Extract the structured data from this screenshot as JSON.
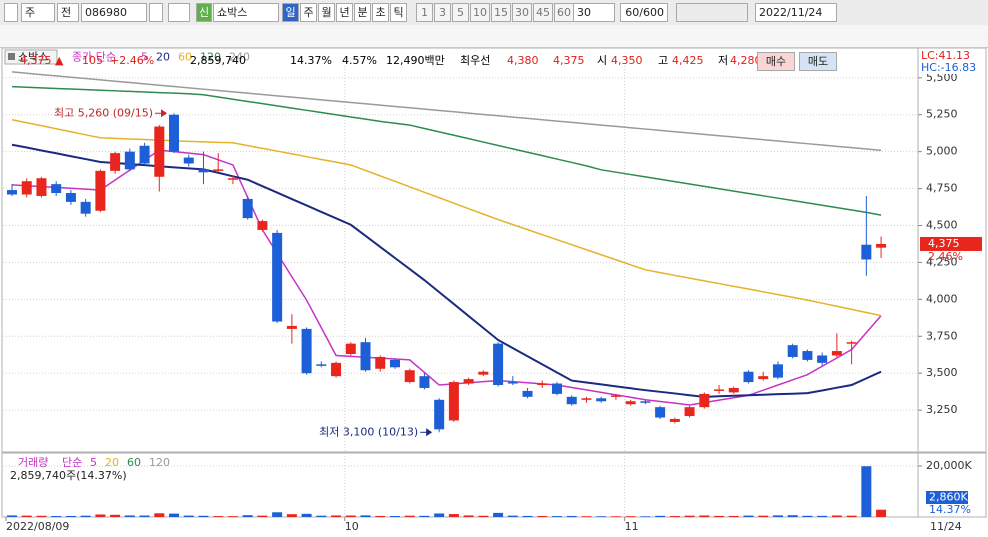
{
  "toolbar": {
    "market": "주",
    "scope": "전",
    "code": "086980",
    "badge": "신",
    "name": "쇼박스",
    "periods": [
      "일",
      "주",
      "월",
      "년",
      "분",
      "초",
      "틱"
    ],
    "intervals": [
      1,
      3,
      5,
      10,
      15,
      30,
      45,
      60
    ],
    "interval_select": 30,
    "count": "60/600",
    "date": "2022/11/24"
  },
  "quote": {
    "price": "4,375 ▲",
    "change": "105",
    "rate": "+2.46%",
    "volume": "2,859,740",
    "turnover": "14.37%",
    "ratio": "4.57%",
    "amount": "12,490백만",
    "best_label": "최우선",
    "ask": "4,380",
    "bid": "4,375",
    "open_label": "시",
    "open": "4,350",
    "high_label": "고",
    "high": "4,425",
    "low_label": "저",
    "low": "4,280",
    "buy": "매수",
    "sell": "매도"
  },
  "chart_data": {
    "type": "candlestick",
    "title": "쇼박스",
    "legend_label": "종가 단순",
    "categories": [
      "2022/08/09",
      null,
      null,
      null,
      null,
      null,
      null,
      null,
      null,
      null,
      null,
      null,
      null,
      null,
      null,
      null,
      null,
      null,
      null,
      null,
      null,
      null,
      null,
      "10",
      null,
      null,
      null,
      null,
      null,
      null,
      null,
      null,
      null,
      null,
      null,
      null,
      null,
      null,
      null,
      null,
      null,
      null,
      "11",
      null,
      null,
      null,
      null,
      null,
      null,
      null,
      null,
      null,
      null,
      null,
      null,
      null,
      null,
      null,
      null,
      null
    ],
    "end_date": "11/24",
    "open": [
      4740,
      4710,
      4700,
      4780,
      4720,
      4660,
      4600,
      4870,
      5000,
      5040,
      4830,
      5250,
      4960,
      4880,
      4870,
      4810,
      4680,
      4470,
      4450,
      3800,
      3800,
      3560,
      3480,
      3630,
      3710,
      3530,
      3590,
      3440,
      3480,
      3320,
      3180,
      3430,
      3490,
      3700,
      3440,
      3380,
      3420,
      3430,
      3340,
      3320,
      3330,
      3340,
      3290,
      3310,
      3270,
      3170,
      3210,
      3270,
      3380,
      3370,
      3510,
      3460,
      3560,
      3690,
      3650,
      3620,
      3620,
      3700,
      4370,
      4350
    ],
    "high": [
      4780,
      4820,
      4830,
      4800,
      4740,
      4680,
      4880,
      5000,
      5020,
      5060,
      5180,
      5260,
      4980,
      5000,
      4990,
      4840,
      4700,
      4540,
      4470,
      3900,
      3810,
      3580,
      3580,
      3710,
      3740,
      3620,
      3600,
      3530,
      3500,
      3330,
      3450,
      3470,
      3520,
      3710,
      3480,
      3400,
      3450,
      3440,
      3350,
      3340,
      3340,
      3360,
      3320,
      3320,
      3280,
      3200,
      3280,
      3370,
      3420,
      3410,
      3520,
      3510,
      3580,
      3700,
      3660,
      3640,
      3770,
      3720,
      4700,
      4425
    ],
    "low": [
      4700,
      4690,
      4690,
      4700,
      4640,
      4560,
      4590,
      4850,
      4870,
      4910,
      4730,
      4990,
      4900,
      4780,
      4860,
      4780,
      4540,
      4460,
      3840,
      3700,
      3490,
      3540,
      3470,
      3620,
      3510,
      3510,
      3530,
      3430,
      3390,
      3100,
      3170,
      3420,
      3480,
      3410,
      3420,
      3330,
      3400,
      3350,
      3280,
      3300,
      3300,
      3320,
      3280,
      3290,
      3190,
      3160,
      3200,
      3260,
      3360,
      3360,
      3430,
      3450,
      3460,
      3600,
      3580,
      3550,
      3610,
      3560,
      4160,
      4280
    ],
    "close": [
      4710,
      4800,
      4820,
      4720,
      4660,
      4580,
      4870,
      4990,
      4880,
      4920,
      5170,
      5000,
      4920,
      4860,
      4880,
      4820,
      4550,
      4530,
      3850,
      3820,
      3500,
      3550,
      3570,
      3700,
      3520,
      3610,
      3540,
      3520,
      3400,
      3120,
      3440,
      3460,
      3510,
      3420,
      3430,
      3340,
      3430,
      3360,
      3290,
      3330,
      3310,
      3350,
      3310,
      3300,
      3200,
      3190,
      3270,
      3360,
      3390,
      3400,
      3440,
      3480,
      3470,
      3610,
      3590,
      3570,
      3650,
      3710,
      4270,
      4375
    ],
    "up_color": "#e8261e",
    "down_color": "#1d5fd6",
    "ylim": [
      2980,
      5580
    ],
    "yticks": [
      {
        "value": 5500,
        "label": "5,500"
      },
      {
        "value": 5250,
        "label": "5,250"
      },
      {
        "value": 5000,
        "label": "5,000"
      },
      {
        "value": 4750,
        "label": "4,750"
      },
      {
        "value": 4500,
        "label": "4,500"
      },
      {
        "value": 4250,
        "label": "4,250"
      },
      {
        "value": 4000,
        "label": "4,000"
      },
      {
        "value": 3750,
        "label": "3,750"
      },
      {
        "value": 3500,
        "label": "3,500"
      },
      {
        "value": 3250,
        "label": "3,250"
      }
    ],
    "grid": true,
    "series": [
      {
        "name": 5,
        "color": "#c633c6",
        "values": [
          4775,
          4769,
          4763,
          4758,
          4752,
          4746,
          4740,
          4808,
          4875,
          4943,
          5010,
          5000,
          4990,
          4980,
          4945,
          4910,
          4690,
          4470,
          4312,
          4153,
          3995,
          3808,
          3620,
          3614,
          3608,
          3602,
          3596,
          3590,
          3505,
          3420,
          3428,
          3435,
          3443,
          3450,
          3443,
          3435,
          3428,
          3420,
          3403,
          3387,
          3370,
          3353,
          3337,
          3320,
          3308,
          3297,
          3285,
          3301,
          3318,
          3334,
          3350,
          3385,
          3420,
          3455,
          3490,
          3547,
          3603,
          3660,
          3775,
          3890
        ]
      },
      {
        "name": 20,
        "color": "#1b2a80",
        "values": [
          5047,
          5028,
          5008,
          4989,
          4969,
          4950,
          4930,
          4923,
          4916,
          4909,
          4901,
          4894,
          4887,
          4880,
          4857,
          4833,
          4810,
          4766,
          4723,
          4679,
          4636,
          4592,
          4549,
          4505,
          4430,
          4355,
          4280,
          4205,
          4130,
          4049,
          3968,
          3887,
          3806,
          3725,
          3670,
          3615,
          3560,
          3505,
          3450,
          3437,
          3424,
          3411,
          3398,
          3385,
          3374,
          3363,
          3351,
          3340,
          3344,
          3347,
          3351,
          3354,
          3358,
          3361,
          3365,
          3383,
          3402,
          3420,
          3465,
          3510
        ]
      },
      {
        "name": 60,
        "color": "#e5b228",
        "values": [
          5216,
          5196,
          5176,
          5155,
          5135,
          5114,
          5094,
          5090,
          5086,
          5082,
          5078,
          5074,
          5070,
          5066,
          5063,
          5060,
          5041,
          5022,
          5004,
          4985,
          4966,
          4947,
          4929,
          4910,
          4873,
          4836,
          4799,
          4762,
          4725,
          4688,
          4651,
          4614,
          4577,
          4540,
          4506,
          4472,
          4438,
          4404,
          4370,
          4336,
          4302,
          4268,
          4234,
          4200,
          4181,
          4162,
          4144,
          4125,
          4107,
          4088,
          4070,
          4051,
          4032,
          4014,
          3995,
          3974,
          3953,
          3932,
          3911,
          3890
        ]
      },
      {
        "name": 120,
        "color": "#2e8b4e",
        "values": [
          5440,
          5436,
          5432,
          5428,
          5424,
          5420,
          5416,
          5412,
          5408,
          5404,
          5400,
          5396,
          5392,
          5385,
          5370,
          5355,
          5340,
          5325,
          5310,
          5295,
          5280,
          5265,
          5250,
          5235,
          5220,
          5205,
          5192,
          5180,
          5157,
          5134,
          5111,
          5088,
          5065,
          5042,
          5019,
          4996,
          4973,
          4950,
          4927,
          4904,
          4877,
          4861,
          4845,
          4829,
          4813,
          4797,
          4781,
          4765,
          4749,
          4733,
          4717,
          4701,
          4685,
          4669,
          4653,
          4637,
          4621,
          4605,
          4589,
          4570
        ]
      },
      {
        "name": 240,
        "color": "#9a9a9a",
        "values": [
          5540,
          5531,
          5522,
          5513,
          5504,
          5495,
          5486,
          5477,
          5468,
          5459,
          5450,
          5441,
          5432,
          5423,
          5414,
          5405,
          5396,
          5387,
          5378,
          5369,
          5360,
          5351,
          5342,
          5333,
          5324,
          5315,
          5306,
          5297,
          5288,
          5279,
          5270,
          5261,
          5252,
          5243,
          5234,
          5225,
          5216,
          5207,
          5198,
          5189,
          5180,
          5171,
          5162,
          5153,
          5144,
          5135,
          5126,
          5117,
          5108,
          5099,
          5090,
          5081,
          5072,
          5063,
          5054,
          5045,
          5036,
          5027,
          5018,
          5009
        ]
      }
    ],
    "annotations": [
      {
        "text": "최고 5,260 (09/15)",
        "color": "#c0282a"
      },
      {
        "text": "최저 3,100 (10/13)",
        "color": "#1b2a80"
      }
    ],
    "lc_label": "LC:41.13",
    "hc_label": "HC:-16.83",
    "last_label": "4,375",
    "change_label": "2.46%",
    "volume": {
      "title": "거래량",
      "legend_label": "단순",
      "values": [
        620000,
        540000,
        480000,
        390000,
        410000,
        520000,
        980000,
        860000,
        610000,
        590000,
        1450000,
        1320000,
        560000,
        480000,
        350000,
        330000,
        720000,
        540000,
        1850000,
        1100000,
        1240000,
        520000,
        610000,
        580000,
        640000,
        410000,
        380000,
        520000,
        460000,
        1380000,
        1150000,
        620000,
        480000,
        1620000,
        540000,
        420000,
        380000,
        360000,
        410000,
        300000,
        290000,
        280000,
        310000,
        270000,
        450000,
        380000,
        520000,
        610000,
        430000,
        400000,
        560000,
        520000,
        640000,
        710000,
        480000,
        450000,
        590000,
        520000,
        19900000,
        2859740
      ],
      "ylim": [
        0,
        24300000
      ],
      "yticks": [
        {
          "value": 20000000,
          "label": "20,000K"
        }
      ],
      "ma": [
        {
          "name": 5,
          "color": "#c633c6"
        },
        {
          "name": 20,
          "color": "#e5b228"
        },
        {
          "name": 60,
          "color": "#2e8b4e"
        },
        {
          "name": 120,
          "color": "#9a9a9a"
        }
      ],
      "summary": "2,859,740주(14.37%)",
      "last_label": "2,860K",
      "ratio_label": "14.37%"
    }
  }
}
